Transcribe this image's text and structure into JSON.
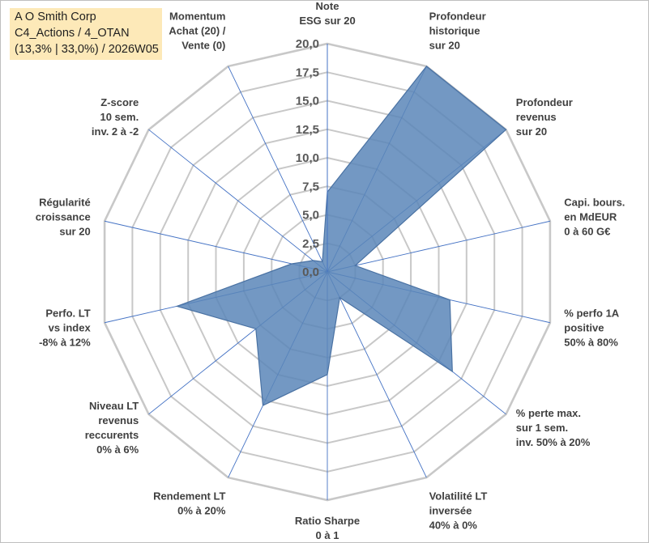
{
  "title": {
    "line1": "A O Smith Corp",
    "line2": "C4_Actions / 4_OTAN",
    "line3": "(13,3% | 33,0%) / 2026W05"
  },
  "colors": {
    "fill": "#5b86b8",
    "stroke": "#4a72a3",
    "grid": "#c8c8c8",
    "axis": "#4472c4",
    "title_bg": "#fde9b8"
  },
  "chart_data": {
    "type": "radar",
    "rmin": 0,
    "rmax": 20,
    "grid_levels": [
      0,
      2.5,
      5,
      7.5,
      10,
      12.5,
      15,
      17.5,
      20
    ],
    "tick_labels": [
      "0,0",
      "2,5",
      "5,0",
      "7,5",
      "10,0",
      "12,5",
      "15,0",
      "17,5",
      "20,0"
    ],
    "axes": [
      {
        "label": [
          "Note",
          "ESG sur 20"
        ],
        "value": 7
      },
      {
        "label": [
          "Profondeur",
          "historique",
          "sur 20"
        ],
        "value": 20
      },
      {
        "label": [
          "Profondeur",
          "revenus",
          "sur 20"
        ],
        "value": 20
      },
      {
        "label": [
          "Capi. bours.",
          "en MdEUR",
          "0 à 60 G€"
        ],
        "value": 2.5
      },
      {
        "label": [
          "% perfo 1A",
          "positive",
          "50% à 80%"
        ],
        "value": 11
      },
      {
        "label": [
          "% perte max.",
          "sur 1 sem.",
          "inv. 50% à 20%"
        ],
        "value": 14
      },
      {
        "label": [
          "Volatilité LT",
          "inversée",
          "40% à 0%"
        ],
        "value": 2.5
      },
      {
        "label": [
          "Ratio Sharpe",
          "0 à 1"
        ],
        "value": 9
      },
      {
        "label": [
          "Rendement LT",
          "0% à 20%"
        ],
        "value": 13
      },
      {
        "label": [
          "Niveau LT",
          "revenus",
          "reccurents",
          "0% à 6%"
        ],
        "value": 8
      },
      {
        "label": [
          "Perfo. LT",
          "vs index",
          "-8% à 12%"
        ],
        "value": 13.5
      },
      {
        "label": [
          "Régularité",
          "croissance",
          "sur 20"
        ],
        "value": 3.2
      },
      {
        "label": [
          "Z-score",
          "10 sem.",
          "inv. 2 à -2"
        ],
        "value": 1.6
      },
      {
        "label": [
          "Momentum",
          "Achat (20) /",
          "Vente (0)"
        ],
        "value": 1
      }
    ]
  }
}
